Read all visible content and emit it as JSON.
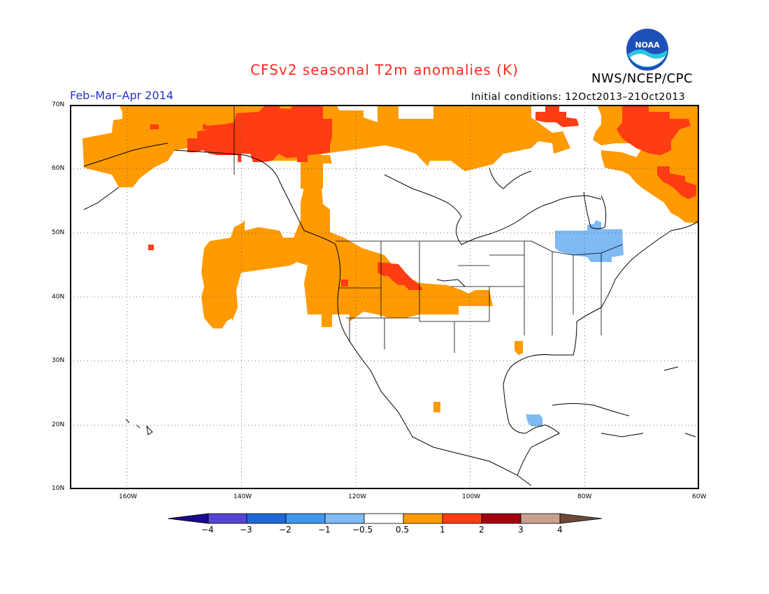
{
  "title": "CFSv2 seasonal T2m anomalies (K)",
  "agency": "NWS/NCEP/CPC",
  "logo_text": "NOAA",
  "period": "Feb–Mar–Apr 2014",
  "initial_conditions": "Initial conditions: 12Oct2013–21Oct2013",
  "map": {
    "region": "North America",
    "lon_range": [
      -170,
      -60
    ],
    "lat_range": [
      10,
      70
    ],
    "lat_labels": [
      "10N",
      "20N",
      "30N",
      "40N",
      "50N",
      "60N",
      "70N"
    ],
    "lon_labels": [
      "160W",
      "140W",
      "120W",
      "100W",
      "80W",
      "60W"
    ],
    "gridlines": "dotted",
    "anomaly_regions": [
      {
        "area": "Alaska, Yukon and northern Canada",
        "category": "0.5 to 1"
      },
      {
        "area": "Yukon / British Columbia interior",
        "category": "1 to 2"
      },
      {
        "area": "Canadian Arctic Archipelago",
        "category": "1 to 2"
      },
      {
        "area": "Baffin Island / Greenland coast",
        "category": "1 to 2"
      },
      {
        "area": "Labrador coast",
        "category": "0.5 to 1"
      },
      {
        "area": "US West and northern Plains",
        "category": "0.5 to 1"
      },
      {
        "area": "Idaho / Montana / Wyoming",
        "category": "1 to 2"
      },
      {
        "area": "Ontario / Quebec (Hudson Bay south)",
        "category": "-1 to -0.5"
      },
      {
        "area": "Yucatan Peninsula",
        "category": "-1 to -0.5"
      }
    ]
  },
  "legend": {
    "labels": [
      "−4",
      "−3",
      "−2",
      "−1",
      "−0.5",
      "0.5",
      "1",
      "2",
      "3",
      "4"
    ],
    "colors": [
      "#1a0a8c",
      "#5544d4",
      "#1c68d8",
      "#3d98ee",
      "#7fbaf4",
      "#ffffff",
      "#ff9a00",
      "#ff3c14",
      "#a40010",
      "#c8a090",
      "#70483a"
    ]
  }
}
